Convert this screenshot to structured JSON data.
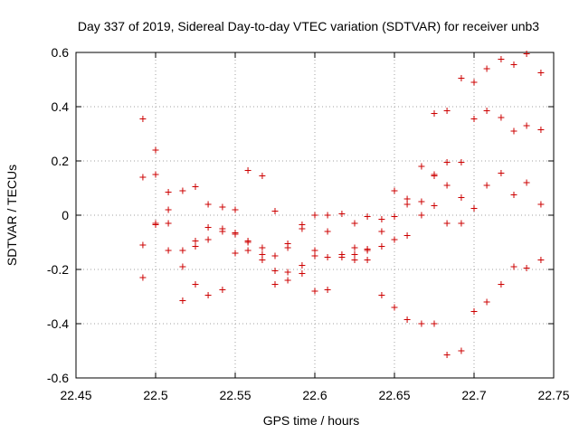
{
  "chart_data": {
    "type": "scatter",
    "title": "Day 337 of 2019, Sidereal Day-to-day VTEC variation (SDTVAR) for receiver unb3",
    "xlabel": "GPS time / hours",
    "ylabel": "SDTVAR / TECUs",
    "xlim": [
      22.45,
      22.75
    ],
    "ylim": [
      -0.6,
      0.6
    ],
    "xticks": [
      22.45,
      22.5,
      22.55,
      22.6,
      22.65,
      22.7,
      22.75
    ],
    "yticks": [
      -0.6,
      -0.4,
      -0.2,
      0,
      0.2,
      0.4,
      0.6
    ],
    "xtick_labels": [
      "22.45",
      "22.5",
      "22.55",
      "22.6",
      "22.65",
      "22.7",
      "22.75"
    ],
    "ytick_labels": [
      "-0.6",
      "-0.4",
      "-0.2",
      "0",
      "0.2",
      "0.4",
      "0.6"
    ],
    "grid": true,
    "marker": "+",
    "color": "#cc0000",
    "series": [
      {
        "name": "SDTVAR",
        "points": [
          [
            22.492,
            0.355
          ],
          [
            22.492,
            0.14
          ],
          [
            22.492,
            -0.11
          ],
          [
            22.492,
            -0.23
          ],
          [
            22.5,
            0.24
          ],
          [
            22.5,
            0.15
          ],
          [
            22.5,
            -0.03
          ],
          [
            22.5,
            -0.035
          ],
          [
            22.508,
            0.085
          ],
          [
            22.508,
            0.02
          ],
          [
            22.508,
            -0.03
          ],
          [
            22.508,
            -0.13
          ],
          [
            22.517,
            0.09
          ],
          [
            22.517,
            -0.13
          ],
          [
            22.517,
            -0.19
          ],
          [
            22.517,
            -0.315
          ],
          [
            22.525,
            0.105
          ],
          [
            22.525,
            -0.095
          ],
          [
            22.525,
            -0.115
          ],
          [
            22.525,
            -0.255
          ],
          [
            22.533,
            0.04
          ],
          [
            22.533,
            -0.045
          ],
          [
            22.533,
            -0.09
          ],
          [
            22.533,
            -0.295
          ],
          [
            22.542,
            0.03
          ],
          [
            22.542,
            -0.05
          ],
          [
            22.542,
            -0.06
          ],
          [
            22.542,
            -0.275
          ],
          [
            22.55,
            0.02
          ],
          [
            22.55,
            -0.065
          ],
          [
            22.55,
            -0.07
          ],
          [
            22.55,
            -0.14
          ],
          [
            22.558,
            0.165
          ],
          [
            22.558,
            -0.095
          ],
          [
            22.558,
            -0.1
          ],
          [
            22.558,
            -0.13
          ],
          [
            22.567,
            0.145
          ],
          [
            22.567,
            -0.12
          ],
          [
            22.567,
            -0.145
          ],
          [
            22.567,
            -0.165
          ],
          [
            22.575,
            0.015
          ],
          [
            22.575,
            -0.15
          ],
          [
            22.575,
            -0.205
          ],
          [
            22.575,
            -0.255
          ],
          [
            22.583,
            -0.105
          ],
          [
            22.583,
            -0.12
          ],
          [
            22.583,
            -0.21
          ],
          [
            22.583,
            -0.24
          ],
          [
            22.592,
            -0.035
          ],
          [
            22.592,
            -0.05
          ],
          [
            22.592,
            -0.185
          ],
          [
            22.592,
            -0.215
          ],
          [
            22.6,
            0.0
          ],
          [
            22.6,
            -0.13
          ],
          [
            22.6,
            -0.15
          ],
          [
            22.6,
            -0.28
          ],
          [
            22.608,
            0.0
          ],
          [
            22.608,
            -0.06
          ],
          [
            22.608,
            -0.155
          ],
          [
            22.608,
            -0.275
          ],
          [
            22.617,
            0.005
          ],
          [
            22.617,
            -0.145
          ],
          [
            22.617,
            -0.155
          ],
          [
            22.625,
            -0.03
          ],
          [
            22.625,
            -0.12
          ],
          [
            22.625,
            -0.145
          ],
          [
            22.625,
            -0.165
          ],
          [
            22.633,
            -0.005
          ],
          [
            22.633,
            -0.125
          ],
          [
            22.633,
            -0.13
          ],
          [
            22.633,
            -0.165
          ],
          [
            22.642,
            -0.015
          ],
          [
            22.642,
            -0.06
          ],
          [
            22.642,
            -0.115
          ],
          [
            22.642,
            -0.295
          ],
          [
            22.65,
            0.09
          ],
          [
            22.65,
            -0.005
          ],
          [
            22.65,
            -0.09
          ],
          [
            22.65,
            -0.34
          ],
          [
            22.658,
            0.06
          ],
          [
            22.658,
            0.04
          ],
          [
            22.658,
            -0.075
          ],
          [
            22.658,
            -0.385
          ],
          [
            22.667,
            0.18
          ],
          [
            22.667,
            0.05
          ],
          [
            22.667,
            0.0
          ],
          [
            22.667,
            -0.4
          ],
          [
            22.675,
            0.375
          ],
          [
            22.675,
            0.15
          ],
          [
            22.675,
            0.145
          ],
          [
            22.675,
            0.035
          ],
          [
            22.675,
            -0.4
          ],
          [
            22.683,
            0.385
          ],
          [
            22.683,
            0.195
          ],
          [
            22.683,
            0.11
          ],
          [
            22.683,
            -0.03
          ],
          [
            22.683,
            -0.515
          ],
          [
            22.692,
            0.505
          ],
          [
            22.692,
            0.195
          ],
          [
            22.692,
            0.065
          ],
          [
            22.692,
            -0.03
          ],
          [
            22.692,
            -0.5
          ],
          [
            22.7,
            0.49
          ],
          [
            22.7,
            0.355
          ],
          [
            22.7,
            0.025
          ],
          [
            22.7,
            -0.355
          ],
          [
            22.708,
            0.54
          ],
          [
            22.708,
            0.385
          ],
          [
            22.708,
            0.11
          ],
          [
            22.708,
            -0.32
          ],
          [
            22.717,
            0.575
          ],
          [
            22.717,
            0.36
          ],
          [
            22.717,
            0.155
          ],
          [
            22.717,
            -0.255
          ],
          [
            22.725,
            0.555
          ],
          [
            22.725,
            0.31
          ],
          [
            22.725,
            0.075
          ],
          [
            22.725,
            -0.19
          ],
          [
            22.733,
            0.595
          ],
          [
            22.733,
            0.33
          ],
          [
            22.733,
            0.12
          ],
          [
            22.733,
            -0.195
          ],
          [
            22.742,
            0.525
          ],
          [
            22.742,
            0.315
          ],
          [
            22.742,
            0.04
          ],
          [
            22.742,
            -0.165
          ]
        ]
      }
    ]
  }
}
